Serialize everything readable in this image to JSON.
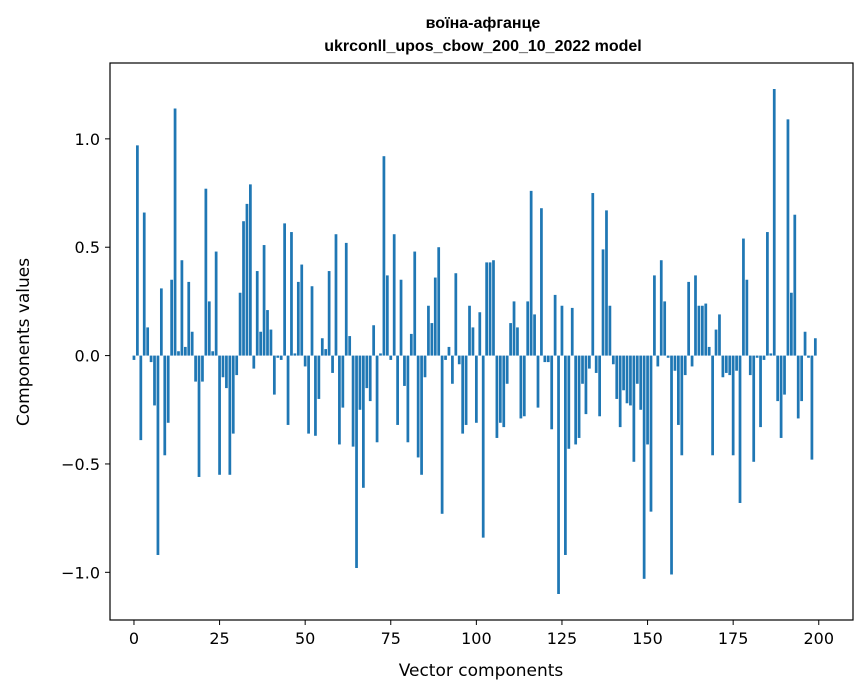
{
  "chart_data": {
    "type": "bar",
    "title": "воїна-афганце",
    "subtitle": "ukrconll_upos_cbow_200_10_2022 model",
    "xlabel": "Vector components",
    "ylabel": "Components values",
    "xlim": [
      -7,
      210
    ],
    "ylim": [
      -1.22,
      1.35
    ],
    "xticks": [
      0,
      25,
      50,
      75,
      100,
      125,
      150,
      175,
      200
    ],
    "yticks": [
      -1.0,
      -0.5,
      0.0,
      0.5,
      1.0
    ],
    "ytick_labels": [
      "−1.0",
      "−0.5",
      "0.0",
      "0.5",
      "1.0"
    ],
    "bar_color": "#1f77b4",
    "values": [
      -0.02,
      0.97,
      -0.39,
      0.66,
      0.13,
      -0.03,
      -0.23,
      -0.92,
      0.31,
      -0.46,
      -0.31,
      0.35,
      1.14,
      0.02,
      0.44,
      0.04,
      0.34,
      0.11,
      -0.12,
      -0.56,
      -0.12,
      0.77,
      0.25,
      0.02,
      0.48,
      -0.55,
      -0.1,
      -0.15,
      -0.55,
      -0.36,
      -0.09,
      0.29,
      0.62,
      0.7,
      0.79,
      -0.06,
      0.39,
      0.11,
      0.51,
      0.21,
      0.12,
      -0.18,
      -0.01,
      -0.02,
      0.61,
      -0.32,
      0.57,
      0.01,
      0.34,
      0.42,
      -0.05,
      -0.36,
      0.32,
      -0.37,
      -0.2,
      0.08,
      0.03,
      0.39,
      -0.08,
      0.56,
      -0.41,
      -0.24,
      0.52,
      0.09,
      -0.42,
      -0.98,
      -0.25,
      -0.61,
      -0.15,
      -0.21,
      0.14,
      -0.4,
      0.01,
      0.92,
      0.37,
      -0.02,
      0.56,
      -0.32,
      0.35,
      -0.14,
      -0.4,
      0.1,
      0.48,
      -0.47,
      -0.55,
      -0.1,
      0.23,
      0.15,
      0.36,
      0.5,
      -0.73,
      -0.02,
      0.04,
      -0.13,
      0.38,
      -0.04,
      -0.36,
      -0.32,
      0.23,
      0.13,
      -0.31,
      0.2,
      -0.84,
      0.43,
      0.43,
      0.44,
      -0.38,
      -0.31,
      -0.33,
      -0.13,
      0.15,
      0.25,
      0.13,
      -0.29,
      -0.28,
      0.25,
      0.76,
      0.19,
      -0.24,
      0.68,
      -0.03,
      -0.03,
      -0.34,
      0.28,
      -1.1,
      0.23,
      -0.92,
      -0.43,
      0.22,
      -0.41,
      -0.38,
      -0.13,
      -0.27,
      -0.06,
      0.75,
      -0.08,
      -0.28,
      0.49,
      0.67,
      0.23,
      -0.04,
      -0.2,
      -0.33,
      -0.16,
      -0.22,
      -0.23,
      -0.49,
      -0.13,
      -0.25,
      -1.03,
      -0.41,
      -0.72,
      0.37,
      -0.05,
      0.44,
      0.25,
      -0.01,
      -1.01,
      -0.07,
      -0.32,
      -0.46,
      -0.09,
      0.34,
      -0.05,
      0.37,
      0.23,
      0.23,
      0.24,
      0.04,
      -0.46,
      0.12,
      0.19,
      -0.1,
      -0.08,
      -0.09,
      -0.46,
      -0.07,
      -0.68,
      0.54,
      0.35,
      -0.09,
      -0.49,
      -0.01,
      -0.33,
      -0.02,
      0.57,
      0.01,
      1.23,
      -0.21,
      -0.38,
      -0.18,
      1.09,
      0.29,
      0.65,
      -0.29,
      -0.21,
      0.11,
      -0.01,
      -0.48,
      0.08
    ]
  }
}
